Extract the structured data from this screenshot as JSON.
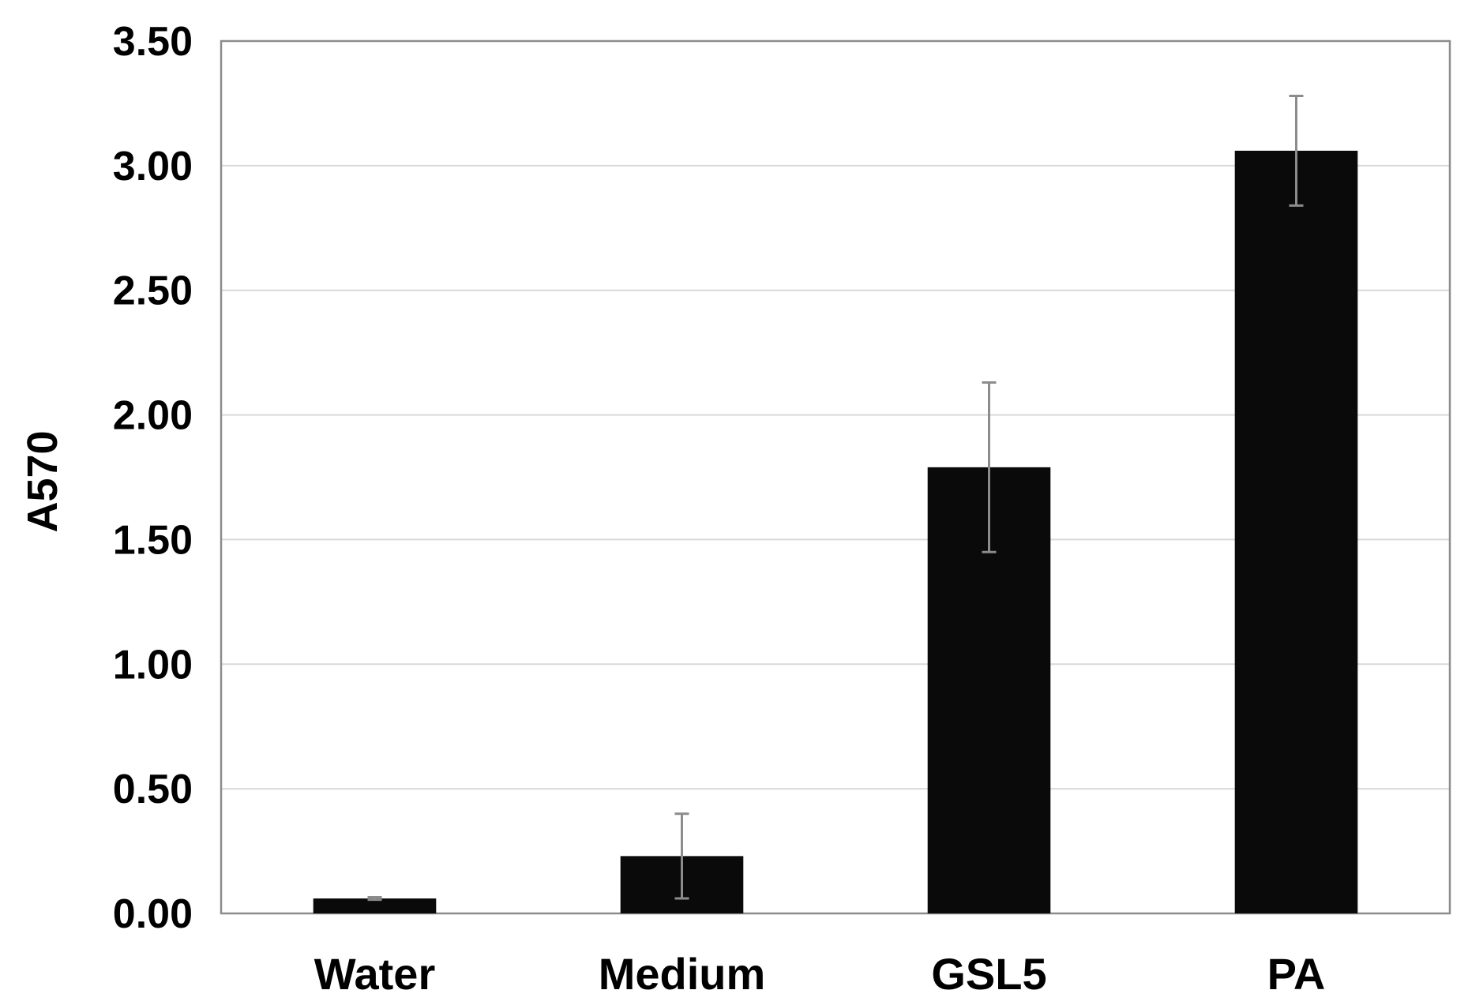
{
  "chart_data": {
    "type": "bar",
    "title": "",
    "xlabel": "",
    "ylabel": "A570",
    "categories": [
      "Water",
      "Medium",
      "GSL5",
      "PA"
    ],
    "values": [
      0.06,
      0.23,
      1.79,
      3.06
    ],
    "error": [
      0.005,
      0.17,
      0.34,
      0.22
    ],
    "ylim": [
      0,
      3.5
    ],
    "yticks": [
      0,
      0.5,
      1.0,
      1.5,
      2.0,
      2.5,
      3.0,
      3.5
    ],
    "ytick_labels": [
      "0.00",
      "0.50",
      "1.00",
      "1.50",
      "2.00",
      "2.50",
      "3.00",
      "3.50"
    ],
    "grid": "horizontal",
    "legend": "none",
    "colors": {
      "bar": "#0a0a0a",
      "error_bar": "#8c8c8c",
      "gridline": "#d9d9d9",
      "axis": "#8c8c8c"
    }
  }
}
